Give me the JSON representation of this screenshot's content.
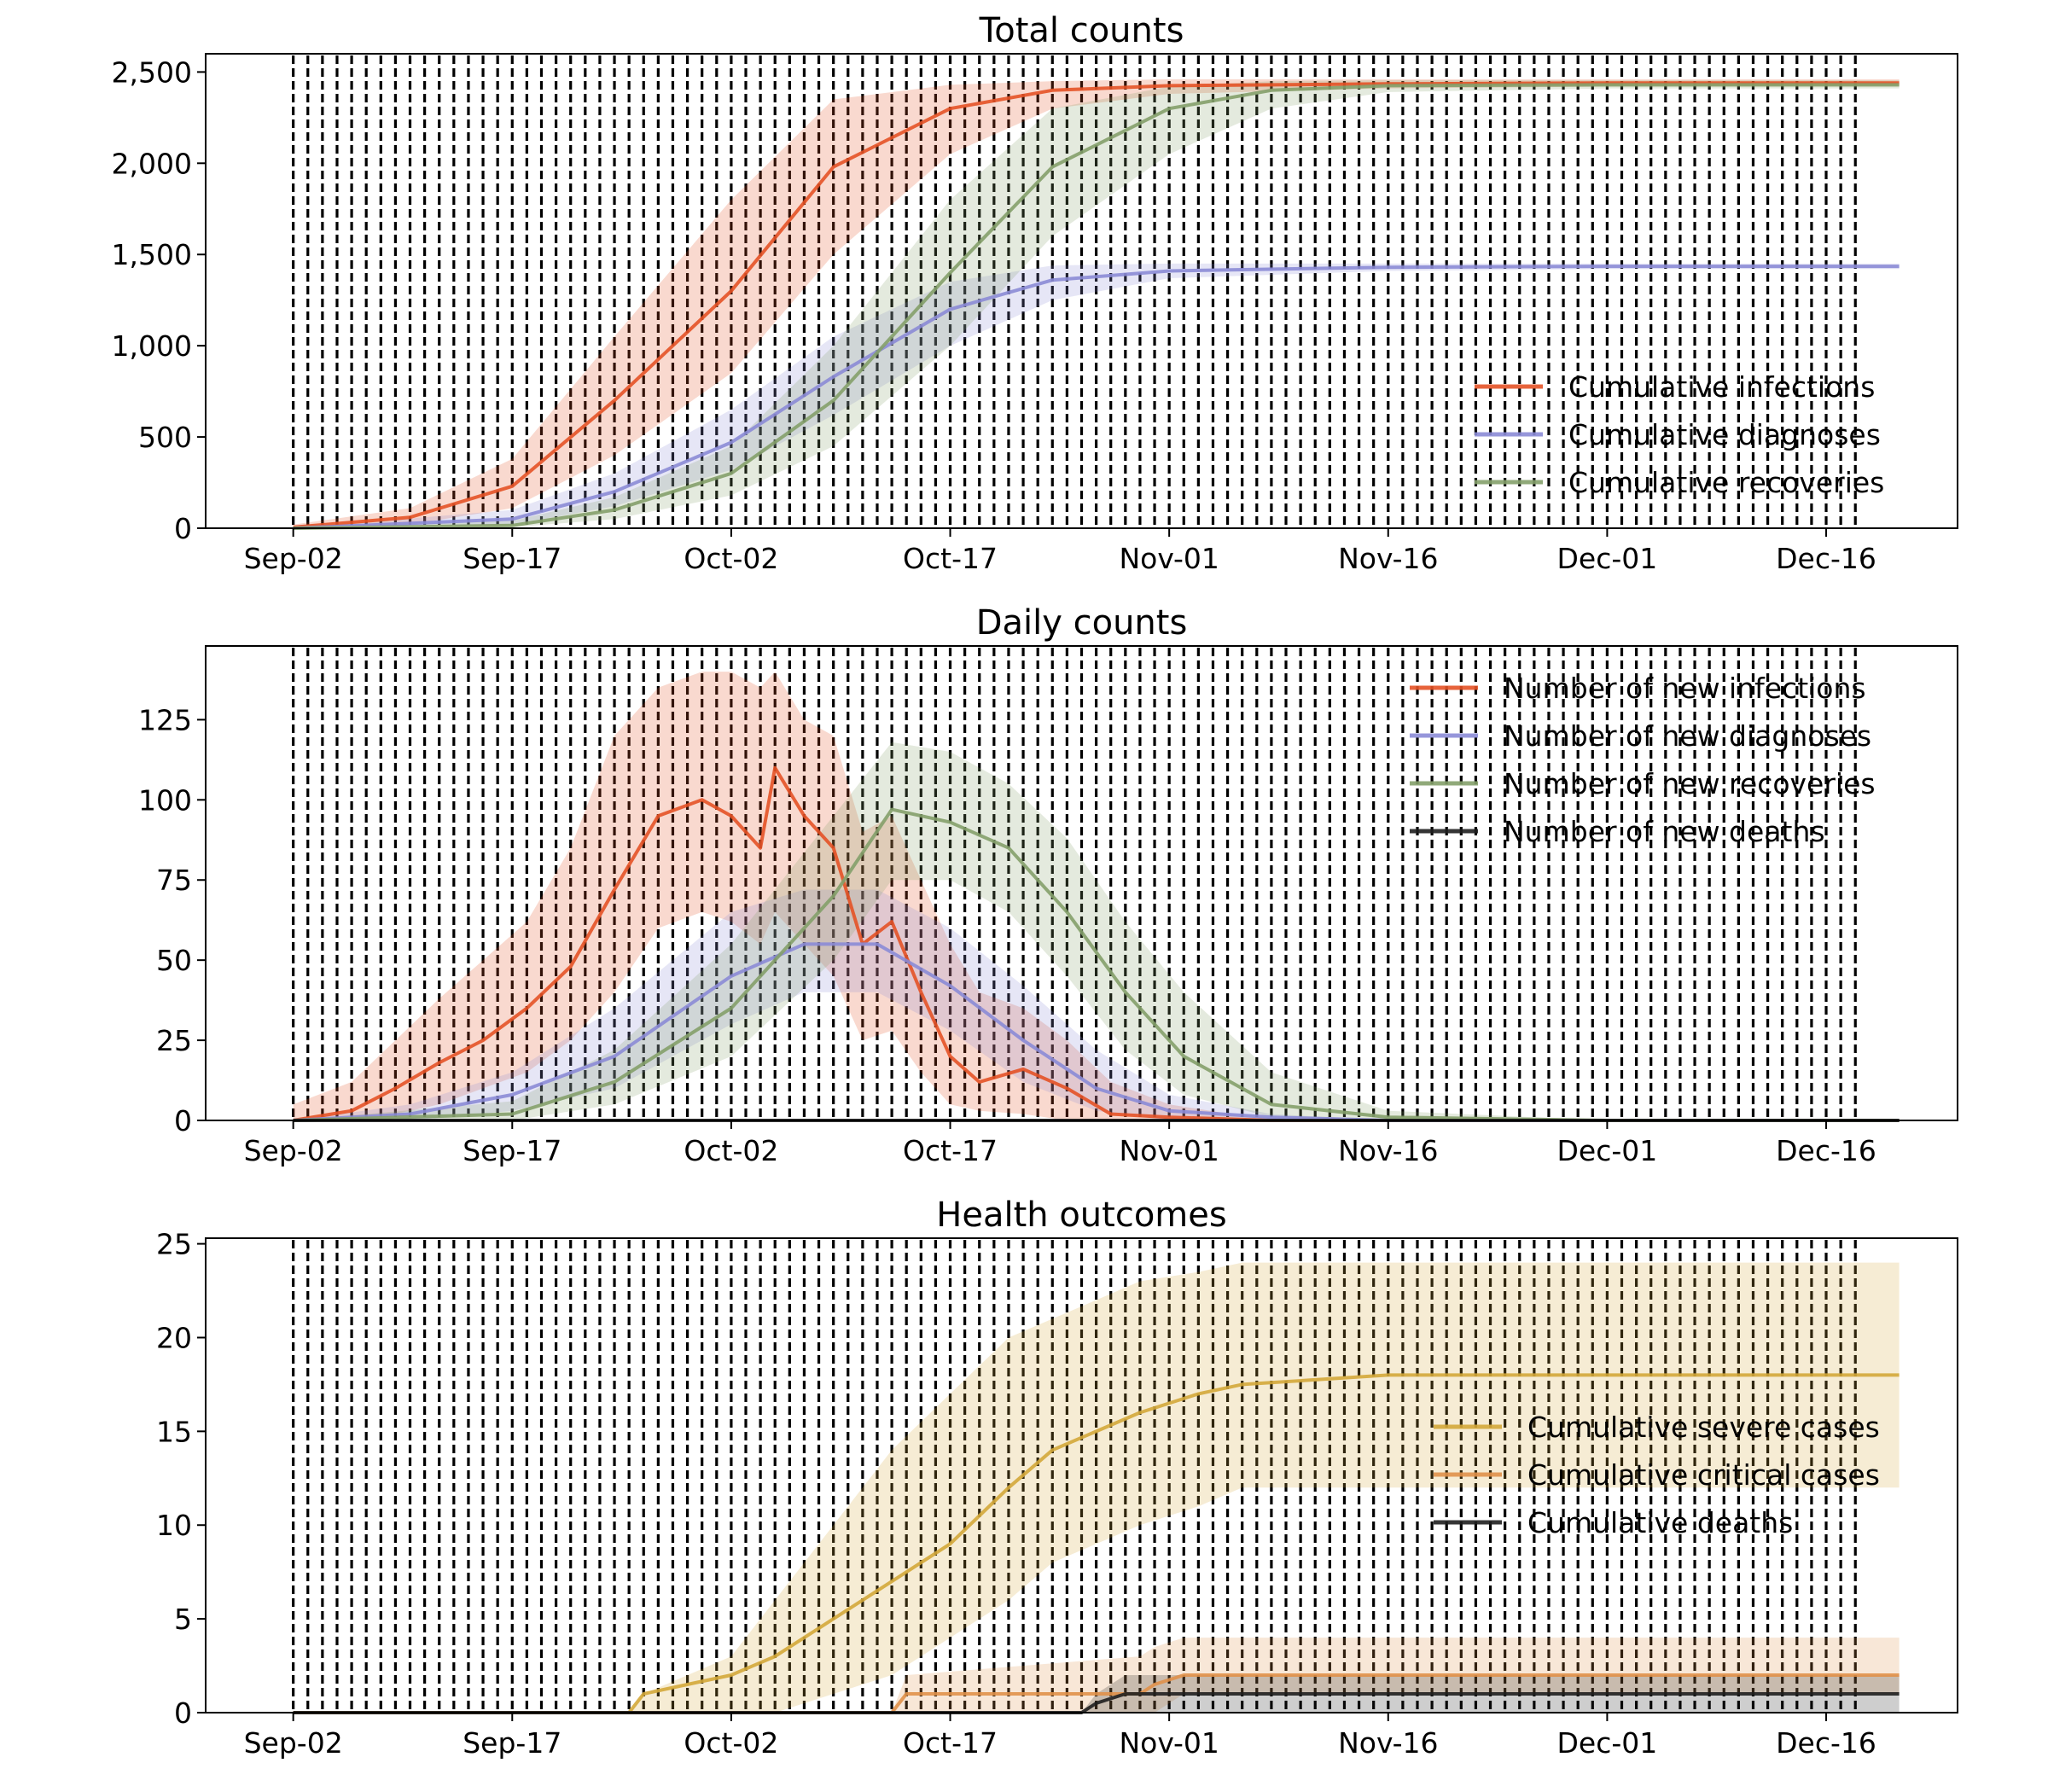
{
  "figure": {
    "colors": {
      "infections": "#e45226",
      "diagnoses": "#8b8bd6",
      "recoveries": "#84a06a",
      "deaths": "#1f1f1f",
      "severe": "#d4a93a",
      "critical": "#e0914a"
    }
  },
  "chart_data": [
    {
      "type": "line",
      "title": "Total counts",
      "x_dates": [
        "2020-09-02",
        "2020-09-17",
        "2020-10-02",
        "2020-10-17",
        "2020-11-01",
        "2020-11-16",
        "2020-12-01",
        "2020-12-16"
      ],
      "xtick_labels": [
        "Sep-02",
        "Sep-17",
        "Oct-02",
        "Oct-17",
        "Nov-01",
        "Nov-16",
        "Dec-01",
        "Dec-16"
      ],
      "x_range": [
        "2020-08-27",
        "2020-12-25"
      ],
      "ylim": [
        0,
        2600
      ],
      "yticks": [
        0,
        500,
        1000,
        1500,
        2000,
        2500
      ],
      "ytick_labels": [
        "0",
        "500",
        "1,000",
        "1,500",
        "2,000",
        "2,500"
      ],
      "legend_position": "lower right",
      "intervention_lines": "daily from Sep-02 to Dec-18 (dashed)",
      "series": [
        {
          "name": "Cumulative infections",
          "color_key": "infections",
          "x": [
            "2020-09-02",
            "2020-09-10",
            "2020-09-17",
            "2020-09-24",
            "2020-10-02",
            "2020-10-09",
            "2020-10-17",
            "2020-10-24",
            "2020-11-01",
            "2020-11-16",
            "2020-12-01",
            "2020-12-16",
            "2020-12-21"
          ],
          "y": [
            5,
            60,
            230,
            700,
            1300,
            1980,
            2300,
            2400,
            2425,
            2435,
            2440,
            2440,
            2440
          ],
          "band_low": [
            0,
            20,
            110,
            400,
            850,
            1500,
            2050,
            2300,
            2380,
            2410,
            2420,
            2420,
            2420
          ],
          "band_high": [
            20,
            110,
            380,
            1050,
            1800,
            2350,
            2430,
            2450,
            2460,
            2460,
            2460,
            2460,
            2460
          ]
        },
        {
          "name": "Cumulative diagnoses",
          "color_key": "diagnoses",
          "x": [
            "2020-09-02",
            "2020-09-17",
            "2020-09-24",
            "2020-10-02",
            "2020-10-09",
            "2020-10-17",
            "2020-10-24",
            "2020-11-01",
            "2020-11-16",
            "2020-12-01",
            "2020-12-16",
            "2020-12-21"
          ],
          "y": [
            0,
            50,
            200,
            470,
            830,
            1200,
            1360,
            1410,
            1430,
            1435,
            1435,
            1435
          ],
          "band_low": [
            0,
            20,
            120,
            320,
            620,
            1000,
            1250,
            1370,
            1410,
            1420,
            1420,
            1420
          ],
          "band_high": [
            0,
            100,
            300,
            650,
            1050,
            1350,
            1440,
            1450,
            1450,
            1450,
            1450,
            1450
          ]
        },
        {
          "name": "Cumulative recoveries",
          "color_key": "recoveries",
          "x": [
            "2020-09-02",
            "2020-09-17",
            "2020-09-24",
            "2020-10-02",
            "2020-10-09",
            "2020-10-17",
            "2020-10-24",
            "2020-11-01",
            "2020-11-08",
            "2020-11-16",
            "2020-12-01",
            "2020-12-16",
            "2020-12-21"
          ],
          "y": [
            0,
            15,
            100,
            300,
            700,
            1400,
            1980,
            2300,
            2400,
            2425,
            2430,
            2430,
            2430
          ],
          "band_low": [
            0,
            5,
            50,
            180,
            450,
            1000,
            1600,
            2050,
            2300,
            2390,
            2410,
            2410,
            2410
          ],
          "band_high": [
            0,
            40,
            170,
            450,
            1000,
            1800,
            2300,
            2420,
            2450,
            2455,
            2455,
            2455,
            2455
          ]
        }
      ]
    },
    {
      "type": "line",
      "title": "Daily counts",
      "x_dates": [
        "2020-09-02",
        "2020-09-17",
        "2020-10-02",
        "2020-10-17",
        "2020-11-01",
        "2020-11-16",
        "2020-12-01",
        "2020-12-16"
      ],
      "xtick_labels": [
        "Sep-02",
        "Sep-17",
        "Oct-02",
        "Oct-17",
        "Nov-01",
        "Nov-16",
        "Dec-01",
        "Dec-16"
      ],
      "x_range": [
        "2020-08-27",
        "2020-12-25"
      ],
      "ylim": [
        0,
        148
      ],
      "yticks": [
        0,
        25,
        50,
        75,
        100,
        125
      ],
      "ytick_labels": [
        "0",
        "25",
        "50",
        "75",
        "100",
        "125"
      ],
      "legend_position": "upper right",
      "intervention_lines": "daily from Sep-02 to Dec-18 (dashed)",
      "series": [
        {
          "name": "Number of new infections",
          "color_key": "infections",
          "x": [
            "2020-09-02",
            "2020-09-06",
            "2020-09-09",
            "2020-09-12",
            "2020-09-15",
            "2020-09-18",
            "2020-09-21",
            "2020-09-24",
            "2020-09-27",
            "2020-09-30",
            "2020-10-02",
            "2020-10-04",
            "2020-10-05",
            "2020-10-07",
            "2020-10-09",
            "2020-10-11",
            "2020-10-13",
            "2020-10-15",
            "2020-10-17",
            "2020-10-19",
            "2020-10-22",
            "2020-10-25",
            "2020-10-28",
            "2020-11-01",
            "2020-11-08",
            "2020-11-16",
            "2020-12-01",
            "2020-12-16",
            "2020-12-21"
          ],
          "y": [
            0,
            3,
            10,
            18,
            25,
            35,
            48,
            72,
            95,
            100,
            95,
            85,
            110,
            95,
            85,
            55,
            62,
            40,
            20,
            12,
            16,
            10,
            2,
            1,
            0,
            0,
            0,
            0,
            0
          ],
          "band_low": [
            0,
            0,
            2,
            5,
            10,
            15,
            25,
            40,
            60,
            65,
            62,
            55,
            65,
            55,
            45,
            25,
            28,
            15,
            5,
            3,
            2,
            0,
            0,
            0,
            0,
            0,
            0,
            0,
            0
          ],
          "band_high": [
            5,
            12,
            25,
            38,
            50,
            62,
            85,
            120,
            135,
            140,
            140,
            135,
            140,
            125,
            120,
            90,
            95,
            75,
            55,
            40,
            35,
            25,
            12,
            5,
            0,
            0,
            0,
            0,
            0
          ]
        },
        {
          "name": "Number of new diagnoses",
          "color_key": "diagnoses",
          "x": [
            "2020-09-02",
            "2020-09-10",
            "2020-09-17",
            "2020-09-24",
            "2020-10-02",
            "2020-10-07",
            "2020-10-12",
            "2020-10-17",
            "2020-10-22",
            "2020-10-27",
            "2020-11-01",
            "2020-11-08",
            "2020-11-16",
            "2020-12-01",
            "2020-12-16",
            "2020-12-21"
          ],
          "y": [
            0,
            2,
            8,
            20,
            45,
            55,
            55,
            42,
            25,
            10,
            3,
            1,
            0,
            0,
            0,
            0
          ],
          "band_low": [
            0,
            0,
            3,
            10,
            30,
            40,
            40,
            28,
            12,
            3,
            0,
            0,
            0,
            0,
            0,
            0
          ],
          "band_high": [
            0,
            5,
            15,
            35,
            65,
            72,
            72,
            60,
            42,
            22,
            8,
            2,
            0,
            0,
            0,
            0
          ]
        },
        {
          "name": "Number of new recoveries",
          "color_key": "recoveries",
          "x": [
            "2020-09-02",
            "2020-09-17",
            "2020-09-24",
            "2020-10-02",
            "2020-10-09",
            "2020-10-13",
            "2020-10-17",
            "2020-10-21",
            "2020-10-25",
            "2020-10-29",
            "2020-11-02",
            "2020-11-08",
            "2020-11-16",
            "2020-12-01",
            "2020-12-16",
            "2020-12-21"
          ],
          "y": [
            0,
            2,
            12,
            35,
            70,
            97,
            93,
            85,
            65,
            40,
            20,
            5,
            1,
            0,
            0,
            0
          ],
          "band_low": [
            0,
            0,
            5,
            20,
            50,
            75,
            75,
            65,
            45,
            22,
            8,
            1,
            0,
            0,
            0,
            0
          ],
          "band_high": [
            0,
            6,
            22,
            55,
            95,
            118,
            115,
            105,
            88,
            62,
            40,
            15,
            3,
            0,
            0,
            0
          ]
        },
        {
          "name": "Number of new deaths",
          "color_key": "deaths",
          "x": [
            "2020-09-02",
            "2020-12-21"
          ],
          "y": [
            0,
            0
          ],
          "band_low": [
            0,
            0
          ],
          "band_high": [
            0,
            0
          ]
        }
      ]
    },
    {
      "type": "line",
      "title": "Health outcomes",
      "x_dates": [
        "2020-09-02",
        "2020-09-17",
        "2020-10-02",
        "2020-10-17",
        "2020-11-01",
        "2020-11-16",
        "2020-12-01",
        "2020-12-16"
      ],
      "xtick_labels": [
        "Sep-02",
        "Sep-17",
        "Oct-02",
        "Oct-17",
        "Nov-01",
        "Nov-16",
        "Dec-01",
        "Dec-16"
      ],
      "x_range": [
        "2020-08-27",
        "2020-12-25"
      ],
      "ylim": [
        0,
        25.3
      ],
      "yticks": [
        0,
        5,
        10,
        15,
        20,
        25
      ],
      "ytick_labels": [
        "0",
        "5",
        "10",
        "15",
        "20",
        "25"
      ],
      "legend_position": "center right",
      "intervention_lines": "daily from Sep-02 to Dec-18 (dashed)",
      "series": [
        {
          "name": "Cumulative severe cases",
          "color_key": "severe",
          "x": [
            "2020-09-02",
            "2020-09-25",
            "2020-09-26",
            "2020-10-02",
            "2020-10-05",
            "2020-10-09",
            "2020-10-13",
            "2020-10-17",
            "2020-10-21",
            "2020-10-24",
            "2020-10-27",
            "2020-10-30",
            "2020-11-03",
            "2020-11-06",
            "2020-11-16",
            "2020-12-01",
            "2020-12-16",
            "2020-12-21"
          ],
          "y": [
            0,
            0,
            1,
            2,
            3,
            5,
            7,
            9,
            12,
            14,
            15,
            16,
            17,
            17.5,
            18,
            18,
            18,
            18
          ],
          "band_low": [
            0,
            0,
            0,
            0,
            0,
            1,
            2,
            4,
            6,
            8,
            9,
            10,
            11,
            12,
            12,
            12,
            12,
            12
          ],
          "band_high": [
            0,
            0,
            1,
            3,
            6,
            10,
            14,
            17,
            20,
            21,
            22,
            23,
            23.5,
            24,
            24,
            24,
            24,
            24
          ]
        },
        {
          "name": "Cumulative critical cases",
          "color_key": "critical",
          "x": [
            "2020-09-02",
            "2020-10-13",
            "2020-10-14",
            "2020-10-30",
            "2020-10-31",
            "2020-11-02",
            "2020-11-16",
            "2020-12-01",
            "2020-12-16",
            "2020-12-21"
          ],
          "y": [
            0,
            0,
            1,
            1,
            1.5,
            2,
            2,
            2,
            2,
            2
          ],
          "band_low": [
            0,
            0,
            0,
            0,
            0,
            1,
            1,
            1,
            1,
            1
          ],
          "band_high": [
            0,
            0,
            2,
            3,
            3.5,
            4,
            4,
            4,
            4,
            4
          ]
        },
        {
          "name": "Cumulative deaths",
          "color_key": "deaths",
          "x": [
            "2020-09-02",
            "2020-10-26",
            "2020-10-27",
            "2020-10-29",
            "2020-11-16",
            "2020-12-01",
            "2020-12-16",
            "2020-12-21"
          ],
          "y": [
            0,
            0,
            0.5,
            1,
            1,
            1,
            1,
            1
          ],
          "band_low": [
            0,
            0,
            0,
            0,
            0,
            0,
            0,
            0
          ],
          "band_high": [
            0,
            0,
            1,
            2,
            2,
            2,
            2,
            2
          ]
        }
      ]
    }
  ]
}
